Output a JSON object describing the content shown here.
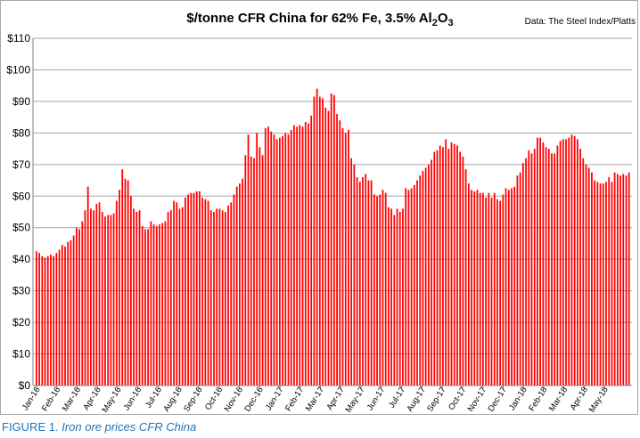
{
  "chart_data": {
    "type": "bar",
    "title": "$/tonne CFR China for 62% Fe, 3.5% Al₂O₃",
    "title_parts": {
      "main": "$/tonne CFR China for 62% Fe, 3.5% Al",
      "sub1": "2",
      "mid": "O",
      "sub2": "3"
    },
    "source": "Data: The Steel Index/Platts",
    "xlabel": "",
    "ylabel": "",
    "ylim": [
      0,
      110
    ],
    "yticks": [
      "$0",
      "$10",
      "$20",
      "$30",
      "$40",
      "$50",
      "$60",
      "$70",
      "$80",
      "$90",
      "$100",
      "$110"
    ],
    "grid": true,
    "bar_color": "#ff0000",
    "x_tick_labels": [
      "Jan-16",
      "Feb-16",
      "Mar-16",
      "Apr-16",
      "May-16",
      "Jun-16",
      "Jul-16",
      "Aug-16",
      "Sep-16",
      "Oct-16",
      "Nov-16",
      "Dec-16",
      "Jan-17",
      "Feb-17",
      "Mar-17",
      "Apr-17",
      "May-17",
      "Jun-17",
      "Jul-17",
      "Aug-17",
      "Sep-17",
      "Oct-17",
      "Nov-17",
      "Dec-17",
      "Jan-18",
      "Feb-18",
      "Mar-18",
      "Apr-18",
      "May-18"
    ],
    "values": [
      42.5,
      42,
      41,
      40.5,
      41,
      41.5,
      41,
      42,
      43,
      44.5,
      44,
      45.5,
      46,
      47.5,
      50,
      49.5,
      52,
      55.5,
      63,
      56,
      55.5,
      57.5,
      58,
      55,
      53.5,
      54,
      54,
      54.5,
      58.5,
      62,
      68.5,
      65.5,
      65,
      60,
      56,
      55,
      55.5,
      50.5,
      49.5,
      49.5,
      52,
      51,
      50.5,
      51,
      51.5,
      52,
      55,
      55.5,
      58.5,
      58,
      56,
      56.5,
      59.5,
      60.5,
      61,
      61,
      61.5,
      61.5,
      59.5,
      59,
      58.5,
      55.5,
      55,
      56,
      56,
      55.5,
      55,
      57,
      58,
      60.5,
      63,
      64,
      65.5,
      73,
      79.5,
      72.5,
      72,
      80,
      75.5,
      73,
      81.5,
      82,
      80.5,
      79.5,
      78,
      78.5,
      79,
      80,
      79.5,
      81,
      82.5,
      82,
      82.5,
      82,
      83.5,
      83,
      85.5,
      91.5,
      94,
      91.5,
      91,
      88,
      87,
      92.5,
      92,
      86,
      84,
      81.5,
      80,
      81,
      72,
      70,
      66,
      64.5,
      66,
      67,
      65,
      65,
      60.5,
      60,
      60.5,
      62,
      61,
      56.5,
      56,
      54,
      56,
      55,
      56,
      62.5,
      62,
      62.5,
      63.5,
      65,
      66.5,
      68,
      69,
      70,
      71.5,
      74,
      74.5,
      76,
      75.5,
      78,
      75,
      77,
      76.5,
      76,
      74,
      72.5,
      68.5,
      64,
      62,
      61.5,
      62,
      61,
      61,
      59.5,
      61,
      59.5,
      61,
      59,
      58.5,
      60.5,
      62.5,
      62,
      62.5,
      63,
      66.5,
      67.5,
      70.5,
      72,
      74.5,
      73.5,
      75,
      78.5,
      78.5,
      77,
      75.5,
      75,
      73.5,
      73.5,
      76,
      77.5,
      78,
      78,
      78.5,
      79.5,
      79,
      78,
      75,
      72,
      70,
      69,
      67.5,
      65,
      64.5,
      64,
      64,
      64.5,
      66,
      64.5,
      67.5,
      67,
      66.5,
      67,
      66.5,
      67.5
    ]
  },
  "caption": {
    "figure": "FIGURE 1.",
    "text": "Iron ore prices CFR China"
  }
}
